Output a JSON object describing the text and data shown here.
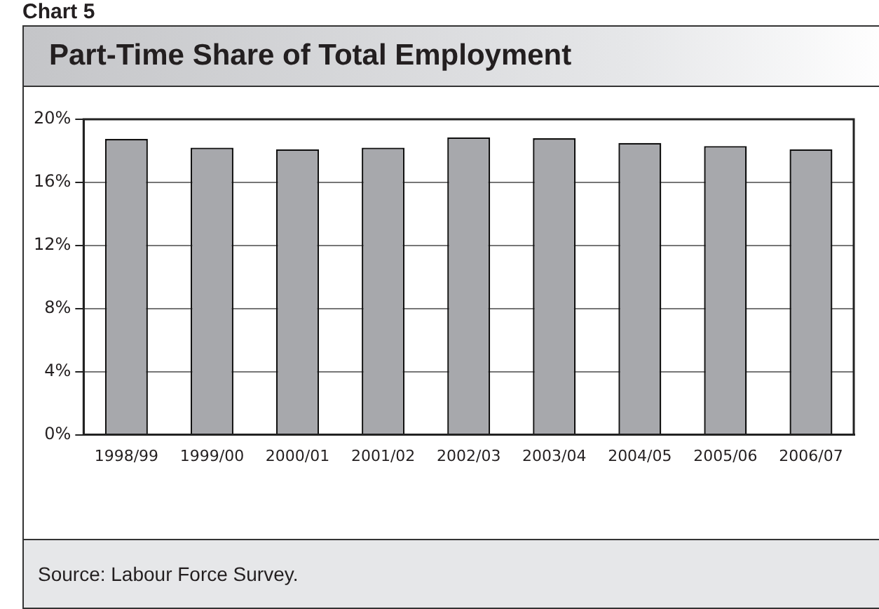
{
  "chart_data": {
    "type": "bar",
    "title": "Part-Time Share of Total Employment",
    "categories": [
      "1998/99",
      "1999/00",
      "2000/01",
      "2001/02",
      "2002/03",
      "2003/04",
      "2004/05",
      "2005/06",
      "2006/07"
    ],
    "values": [
      18.75,
      18.2,
      18.1,
      18.2,
      18.85,
      18.8,
      18.5,
      18.3,
      18.1
    ],
    "color": "#a7a8ac",
    "ylim": [
      0,
      20
    ],
    "yticks": [
      {
        "value": 0,
        "label": "0%"
      },
      {
        "value": 4,
        "label": "4%"
      },
      {
        "value": 8,
        "label": "8%"
      },
      {
        "value": 12,
        "label": "12%"
      },
      {
        "value": 16,
        "label": "16%"
      },
      {
        "value": 20,
        "label": "20%"
      }
    ],
    "grid": "y",
    "legend": false,
    "annotations": [
      "Chart 5",
      "Source: Labour Force Survey."
    ]
  }
}
